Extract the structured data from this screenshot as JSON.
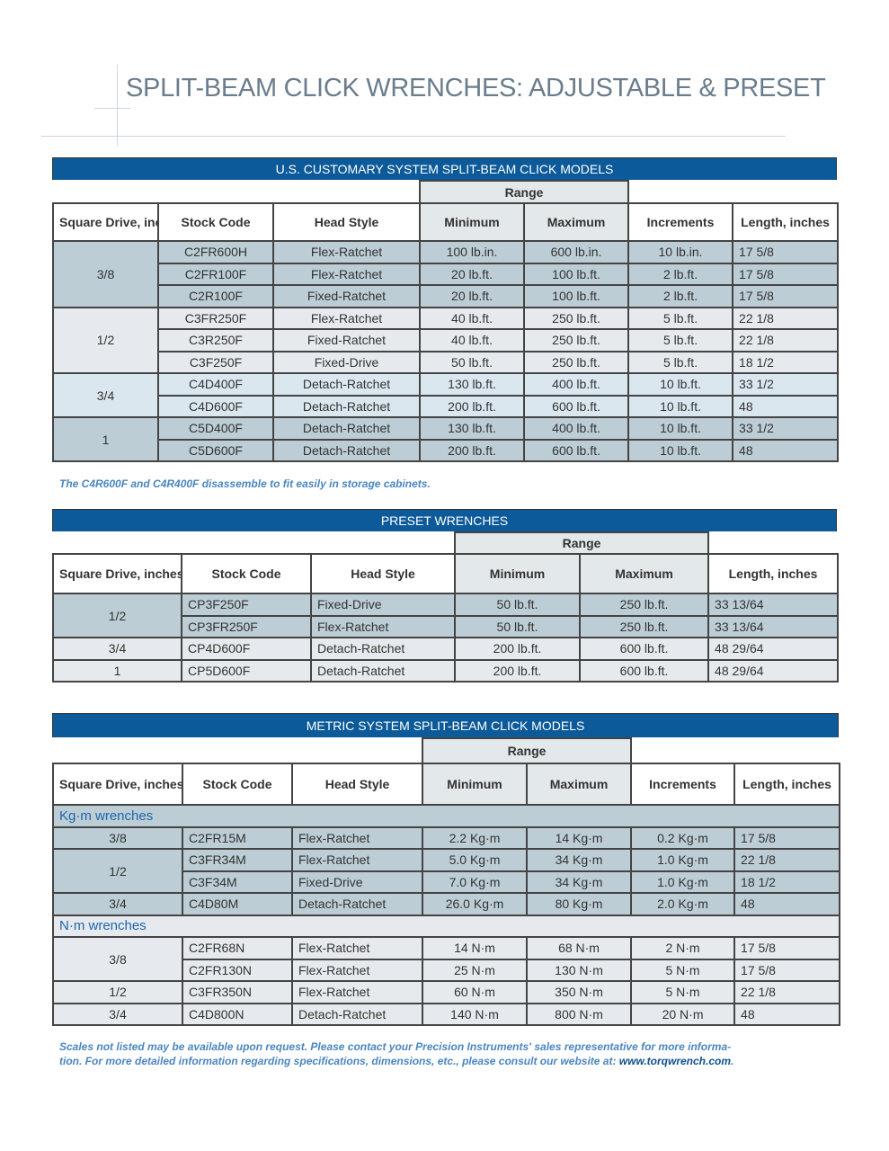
{
  "page_title": "SPLIT-BEAM CLICK WRENCHES: ADJUSTABLE & PRESET",
  "colors": {
    "band": "#0c5a99",
    "row_dark": "#bccdd5",
    "row_light": "#e6eaee",
    "row_blue": "#dbe7ef",
    "note": "#4a86c0"
  },
  "us_table": {
    "title": "U.S. CUSTOMARY SYSTEM SPLIT-BEAM CLICK MODELS",
    "range_label": "Range",
    "columns": [
      "Square Drive, inches",
      "Stock Code",
      "Head Style",
      "Minimum",
      "Maximum",
      "Increments",
      "Length, inches"
    ],
    "groups": [
      {
        "drive": "3/8",
        "shade": "dark",
        "rows": [
          [
            "C2FR600H",
            "Flex-Ratchet",
            "100 lb.in.",
            "600 lb.in.",
            "10 lb.in.",
            "17 5/8"
          ],
          [
            "C2FR100F",
            "Flex-Ratchet",
            "20 lb.ft.",
            "100 lb.ft.",
            "2 lb.ft.",
            "17 5/8"
          ],
          [
            "C2R100F",
            "Fixed-Ratchet",
            "20 lb.ft.",
            "100 lb.ft.",
            "2 lb.ft.",
            "17 5/8"
          ]
        ]
      },
      {
        "drive": "1/2",
        "shade": "light",
        "rows": [
          [
            "C3FR250F",
            "Flex-Ratchet",
            "40 lb.ft.",
            "250 lb.ft.",
            "5 lb.ft.",
            "22 1/8"
          ],
          [
            "C3R250F",
            "Fixed-Ratchet",
            "40 lb.ft.",
            "250 lb.ft.",
            "5 lb.ft.",
            "22 1/8"
          ],
          [
            "C3F250F",
            "Fixed-Drive",
            "50 lb.ft.",
            "250 lb.ft.",
            "5 lb.ft.",
            "18 1/2"
          ]
        ]
      },
      {
        "drive": "3/4",
        "shade": "blue",
        "rows": [
          [
            "C4D400F",
            "Detach-Ratchet",
            "130 lb.ft.",
            "400 lb.ft.",
            "10 lb.ft.",
            "33 1/2"
          ],
          [
            "C4D600F",
            "Detach-Ratchet",
            "200 lb.ft.",
            "600 lb.ft.",
            "10 lb.ft.",
            "48"
          ]
        ]
      },
      {
        "drive": "1",
        "shade": "dark",
        "rows": [
          [
            "C5D400F",
            "Detach-Ratchet",
            "130 lb.ft.",
            "400 lb.ft.",
            "10 lb.ft.",
            "33 1/2"
          ],
          [
            "C5D600F",
            "Detach-Ratchet",
            "200 lb.ft.",
            "600 lb.ft.",
            "10 lb.ft.",
            "48"
          ]
        ]
      }
    ],
    "note": "The C4R600F and C4R400F disassemble to fit easily in storage cabinets."
  },
  "preset_table": {
    "title": "PRESET WRENCHES",
    "range_label": "Range",
    "columns": [
      "Square Drive, inches",
      "Stock Code",
      "Head Style",
      "Minimum",
      "Maximum",
      "Length, inches"
    ],
    "groups": [
      {
        "drive": "1/2",
        "shade": "dark",
        "rows": [
          [
            "CP3F250F",
            "Fixed-Drive",
            "50 lb.ft.",
            "250 lb.ft.",
            "33 13/64"
          ],
          [
            "CP3FR250F",
            "Flex-Ratchet",
            "50 lb.ft.",
            "250 lb.ft.",
            "33 13/64"
          ]
        ]
      },
      {
        "drive": "3/4",
        "shade": "light",
        "rows": [
          [
            "CP4D600F",
            "Detach-Ratchet",
            "200 lb.ft.",
            "600 lb.ft.",
            "48 29/64"
          ]
        ]
      },
      {
        "drive": "1",
        "shade": "light",
        "rows": [
          [
            "CP5D600F",
            "Detach-Ratchet",
            "200 lb.ft.",
            "600 lb.ft.",
            "48 29/64"
          ]
        ]
      }
    ]
  },
  "metric_table": {
    "title": "METRIC SYSTEM SPLIT-BEAM CLICK MODELS",
    "range_label": "Range",
    "columns": [
      "Square Drive, inches",
      "Stock Code",
      "Head Style",
      "Minimum",
      "Maximum",
      "Increments",
      "Length, inches"
    ],
    "sections": [
      {
        "label": "Kg·m wrenches",
        "shade": "dark",
        "groups": [
          {
            "drive": "3/8",
            "rows": [
              [
                "C2FR15M",
                "Flex-Ratchet",
                "2.2 Kg·m",
                "14 Kg·m",
                "0.2 Kg·m",
                "17 5/8"
              ]
            ]
          },
          {
            "drive": "1/2",
            "rows": [
              [
                "C3FR34M",
                "Flex-Ratchet",
                "5.0 Kg·m",
                "34 Kg·m",
                "1.0 Kg·m",
                "22 1/8"
              ],
              [
                "C3F34M",
                "Fixed-Drive",
                "7.0 Kg·m",
                "34 Kg·m",
                "1.0 Kg·m",
                "18 1/2"
              ]
            ]
          },
          {
            "drive": "3/4",
            "rows": [
              [
                "C4D80M",
                "Detach-Ratchet",
                "26.0 Kg·m",
                "80 Kg·m",
                "2.0 Kg·m",
                "48"
              ]
            ]
          }
        ]
      },
      {
        "label": "N·m wrenches",
        "shade": "light",
        "groups": [
          {
            "drive": "3/8",
            "rows": [
              [
                "C2FR68N",
                "Flex-Ratchet",
                "14 N·m",
                "68 N·m",
                "2 N·m",
                "17 5/8"
              ],
              [
                "C2FR130N",
                "Flex-Ratchet",
                "25 N·m",
                "130 N·m",
                "5 N·m",
                "17 5/8"
              ]
            ]
          },
          {
            "drive": "1/2",
            "rows": [
              [
                "C3FR350N",
                "Flex-Ratchet",
                "60 N·m",
                "350 N·m",
                "5 N·m",
                "22 1/8"
              ]
            ]
          },
          {
            "drive": "3/4",
            "rows": [
              [
                "C4D800N",
                "Detach-Ratchet",
                "140 N·m",
                "800 N·m",
                "20 N·m",
                "48"
              ]
            ]
          }
        ]
      }
    ]
  },
  "footer_note": {
    "line1": "Scales not listed may be available upon request. Please contact your Precision Instruments' sales representative for more informa-",
    "line2": "tion. For more detailed information regarding specifications, dimensions, etc., please consult our website at: ",
    "link": "www.torqwrench.com",
    "end": "."
  }
}
